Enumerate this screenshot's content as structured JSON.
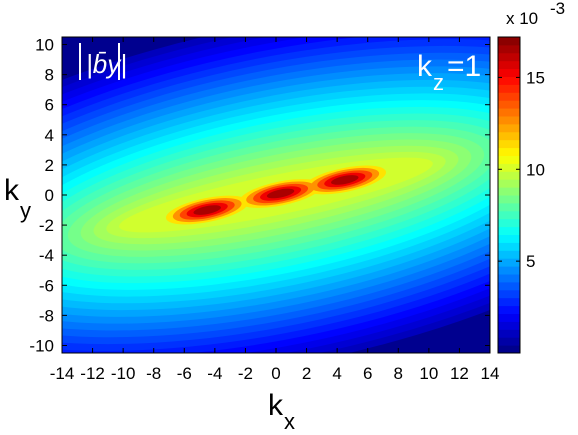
{
  "chart_data": {
    "type": "heatmap",
    "panel_label": "|b̄y|",
    "annotation": {
      "k": "k",
      "sub": "z",
      "rest": "=1"
    },
    "xlabel": {
      "main": "k",
      "sub": "x"
    },
    "ylabel": {
      "main": "k",
      "sub": "y"
    },
    "xlim": [
      -14,
      14
    ],
    "ylim": [
      -10.5,
      10.5
    ],
    "x_ticks": [
      -14,
      -12,
      -10,
      -8,
      -6,
      -4,
      -2,
      0,
      2,
      4,
      6,
      8,
      10,
      12,
      14
    ],
    "y_ticks": [
      -10,
      -8,
      -6,
      -4,
      -2,
      0,
      2,
      4,
      6,
      8,
      10
    ],
    "colorbar": {
      "multiplier": "x 10",
      "exponent": "-3",
      "range": [
        0,
        17.2
      ],
      "ticks": [
        5,
        10,
        15
      ],
      "colormap": "jet"
    },
    "field": {
      "peak_value": 17.0,
      "ridge_slope": 0.2,
      "peaks": [
        {
          "x": -4.5,
          "y": -1.0
        },
        {
          "x": 0.3,
          "y": 0.1
        },
        {
          "x": 4.5,
          "y": 1.0
        }
      ],
      "grid": "off"
    }
  }
}
